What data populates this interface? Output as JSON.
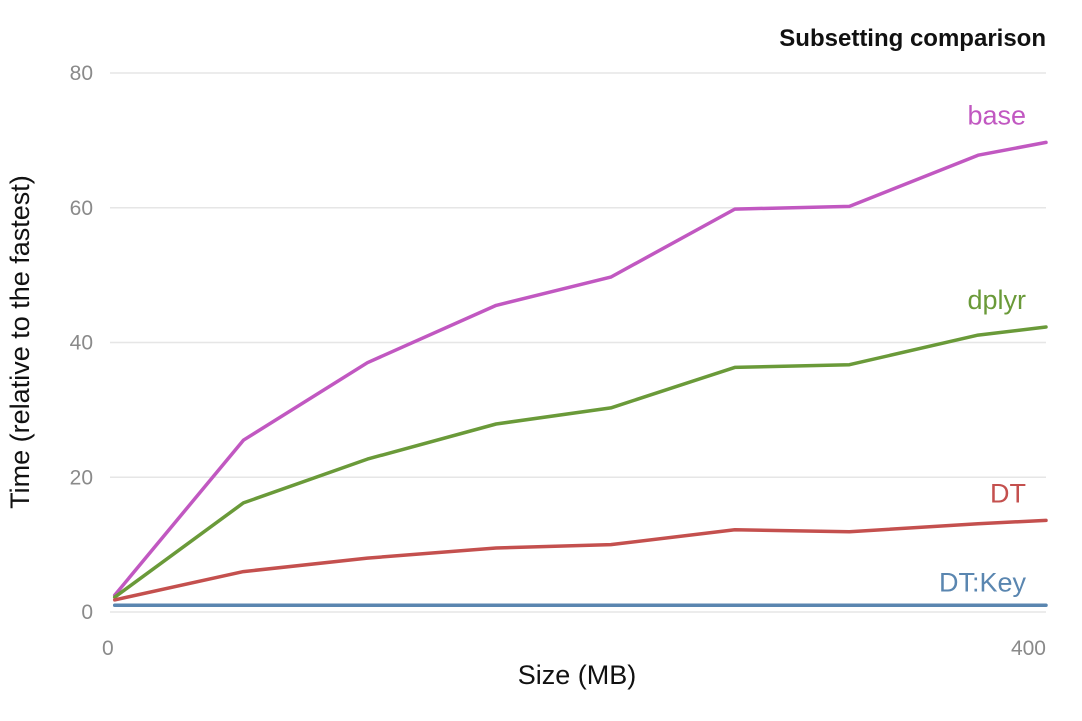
{
  "chart_data": {
    "type": "line",
    "title": "Subsetting comparison",
    "xlabel": "Size (MB)",
    "ylabel": "Time (relative to the fastest)",
    "xlim": [
      0,
      400
    ],
    "ylim": [
      0,
      80
    ],
    "x_ticks": [
      0,
      400
    ],
    "y_ticks": [
      0,
      20,
      40,
      60,
      80
    ],
    "grid": true,
    "legend": "direct labels at line ends",
    "series": [
      {
        "name": "base",
        "color": "#c158c1",
        "x": [
          2,
          57,
          110,
          165,
          214,
          267,
          316,
          371,
          400
        ],
        "y": [
          2.5,
          25.5,
          37,
          45.5,
          49.7,
          59.8,
          60.2,
          67.8,
          69.7
        ]
      },
      {
        "name": "dplyr",
        "color": "#6a9a39",
        "x": [
          2,
          57,
          110,
          165,
          214,
          267,
          316,
          371,
          400
        ],
        "y": [
          2.2,
          16.2,
          22.7,
          27.9,
          30.3,
          36.3,
          36.7,
          41.1,
          42.3
        ]
      },
      {
        "name": "DT",
        "color": "#c4504e",
        "x": [
          2,
          57,
          110,
          165,
          214,
          267,
          316,
          371,
          400
        ],
        "y": [
          1.8,
          6,
          8,
          9.5,
          10,
          12.2,
          11.9,
          13.1,
          13.6
        ]
      },
      {
        "name": "DT:Key",
        "color": "#5a86b0",
        "x": [
          2,
          57,
          110,
          165,
          214,
          267,
          316,
          371,
          400
        ],
        "y": [
          1,
          1,
          1,
          1,
          1,
          1,
          1,
          1,
          1
        ]
      }
    ]
  }
}
